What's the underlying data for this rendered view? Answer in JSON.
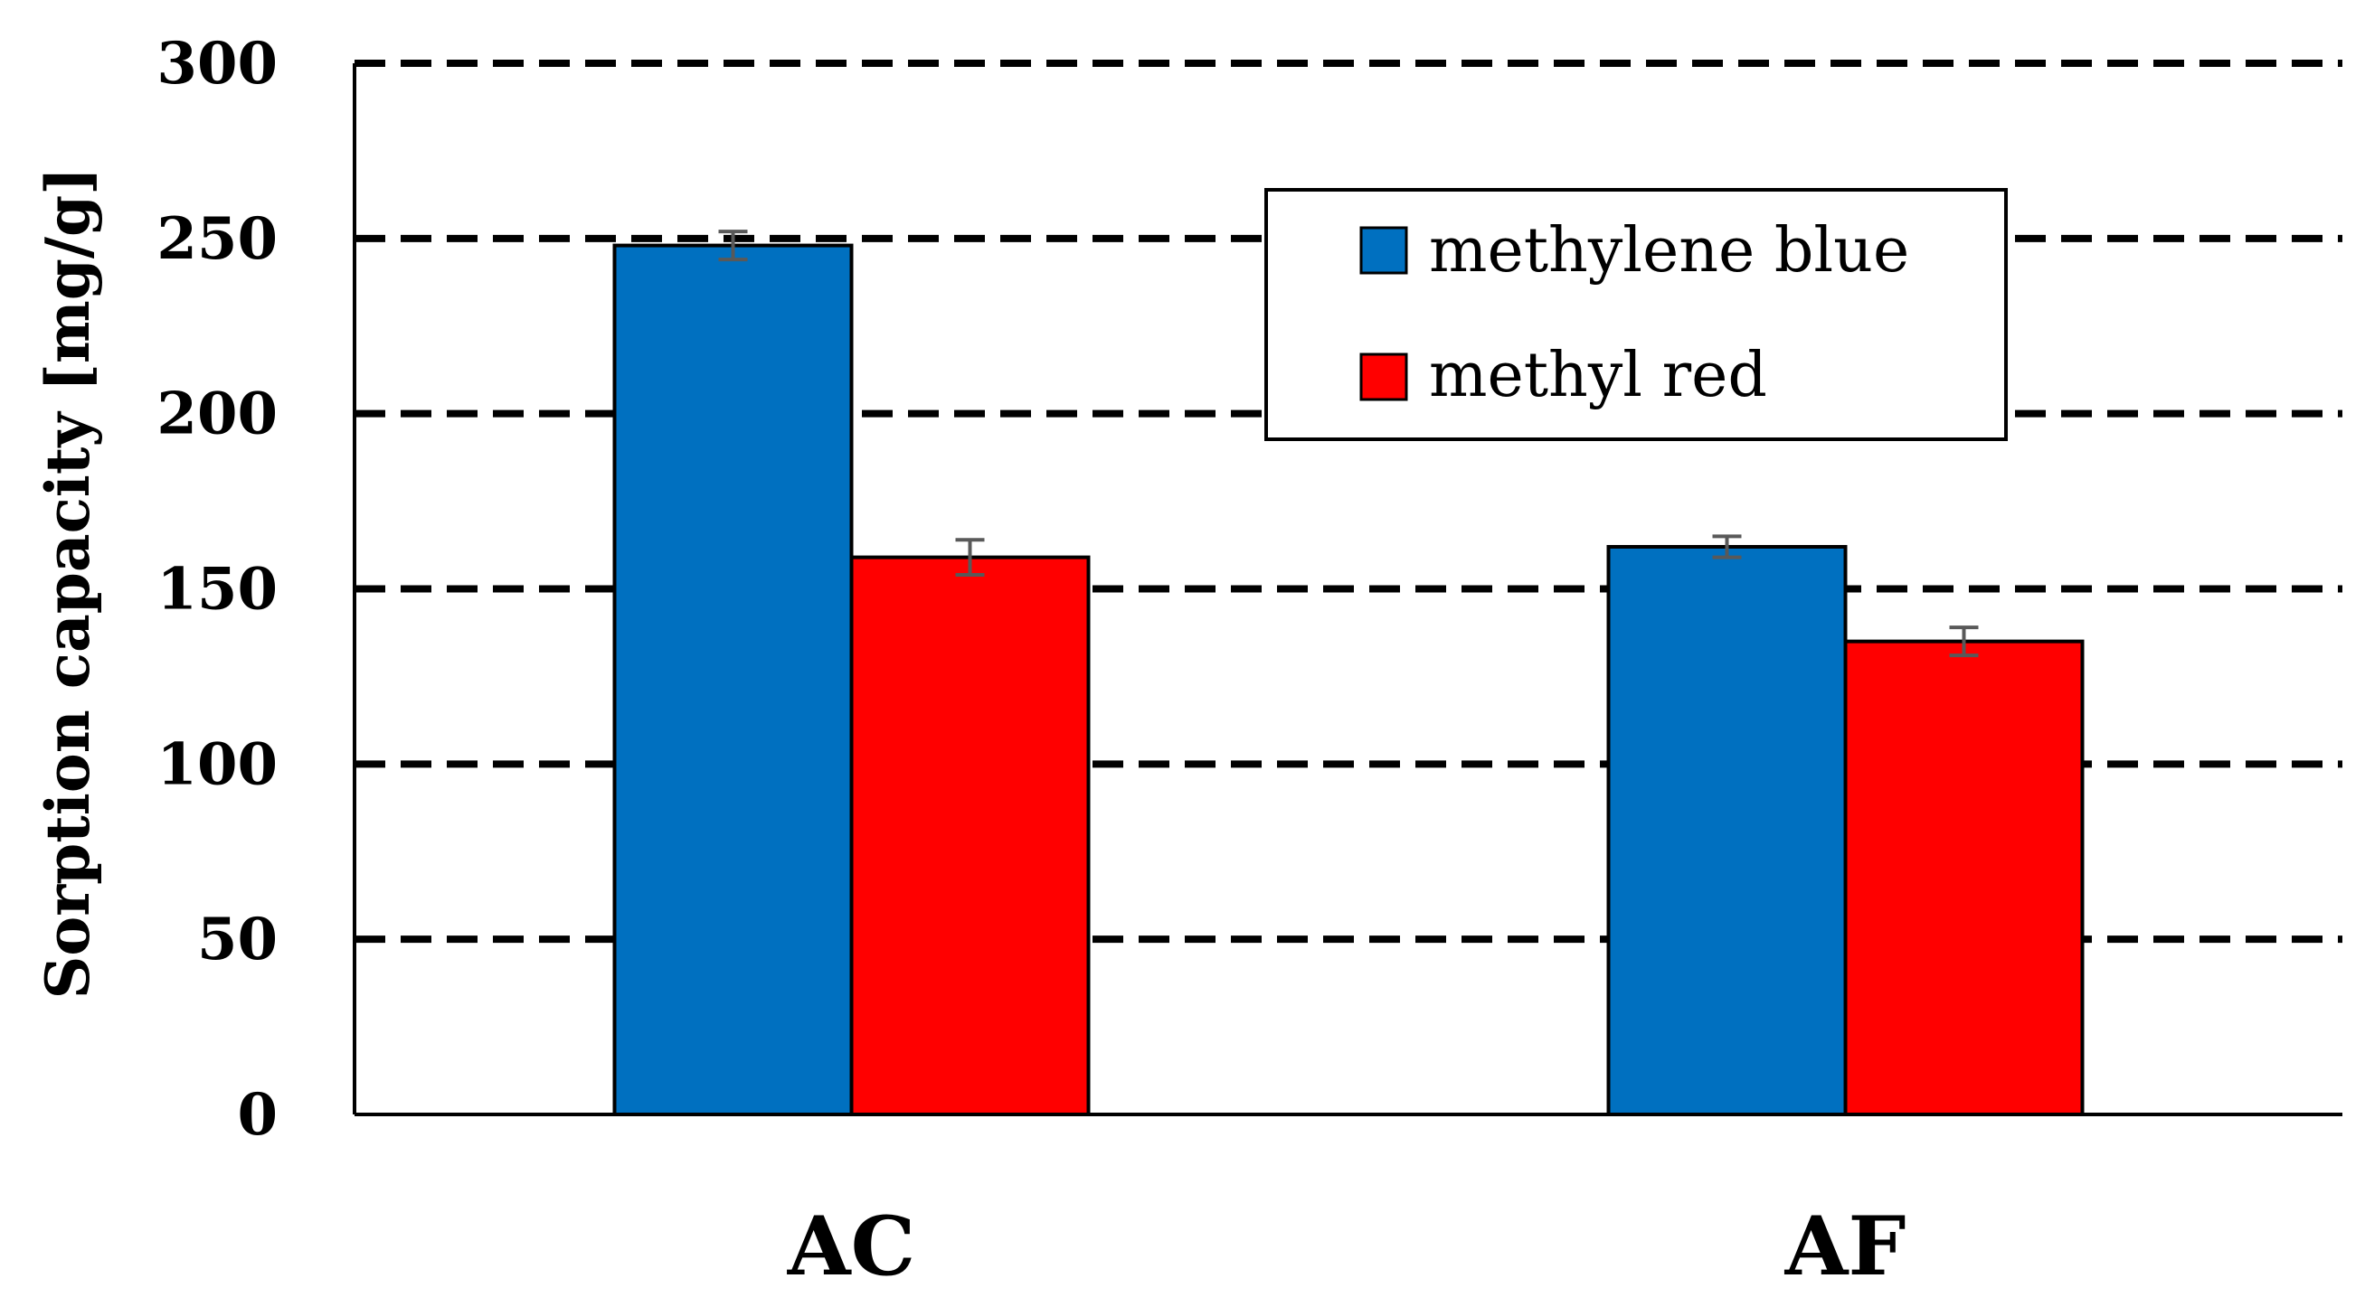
{
  "chart_data": {
    "type": "bar",
    "ylabel": "Sorption capacity [mg/g]",
    "xlabel": "",
    "categories": [
      "AC",
      "AF"
    ],
    "ylim": [
      0,
      300
    ],
    "yticks": [
      0,
      50,
      100,
      150,
      200,
      250,
      300
    ],
    "grid": true,
    "grid_style": "dashed",
    "legend_position": "top-right",
    "series": [
      {
        "name": "methylene blue",
        "color": "#0070C0",
        "values": [
          248,
          162
        ],
        "errors": [
          4,
          3
        ]
      },
      {
        "name": "methyl red",
        "color": "#FF0000",
        "values": [
          159,
          135
        ],
        "errors": [
          5,
          4
        ]
      }
    ]
  }
}
